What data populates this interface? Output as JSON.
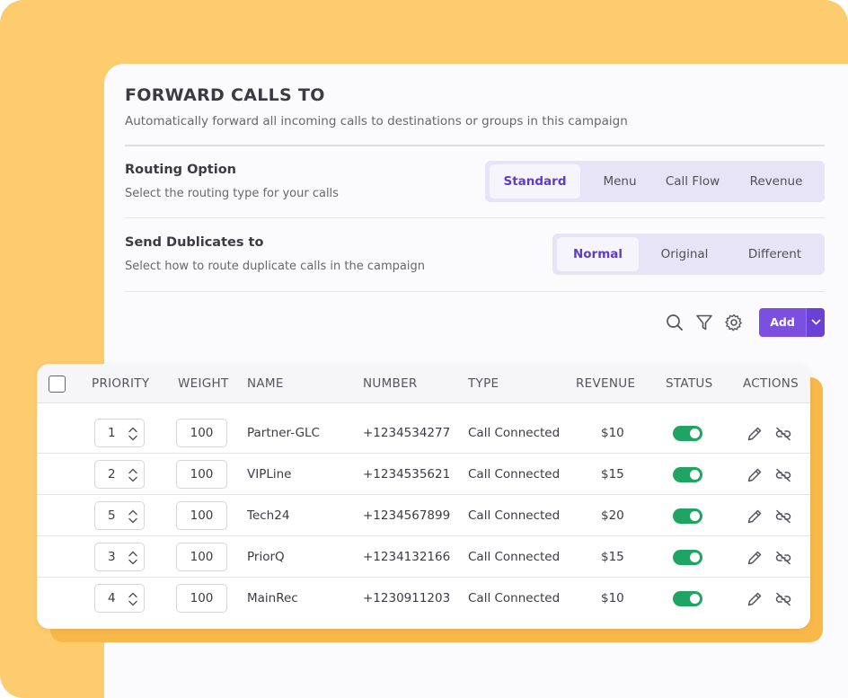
{
  "header": {
    "title": "FORWARD CALLS TO",
    "subtitle": "Automatically forward all incoming calls to destinations or groups in this campaign"
  },
  "routing": {
    "title": "Routing Option",
    "description": "Select the routing type for your calls",
    "options": [
      "Standard",
      "Menu",
      "Call Flow",
      "Revenue"
    ],
    "selected": "Standard"
  },
  "duplicates": {
    "title": "Send Dublicates to",
    "description": "Select how to route duplicate calls in the campaign",
    "options": [
      "Normal",
      "Original",
      "Different"
    ],
    "selected": "Normal"
  },
  "toolbar": {
    "search_icon": "search-icon",
    "filter_icon": "filter-icon",
    "settings_icon": "gear-icon",
    "add_label": "Add",
    "accent": "#7b4fe0"
  },
  "table": {
    "columns": [
      "PRIORITY",
      "WEIGHT",
      "NAME",
      "NUMBER",
      "TYPE",
      "REVENUE",
      "STATUS",
      "ACTIONS"
    ],
    "rows": [
      {
        "priority": "1",
        "weight": "100",
        "name": "Partner-GLC",
        "number": "+1234534277",
        "type": "Call Connected",
        "revenue": "$10",
        "status": "on"
      },
      {
        "priority": "2",
        "weight": "100",
        "name": "VIPLine",
        "number": "+1234535621",
        "type": "Call Connected",
        "revenue": "$15",
        "status": "on"
      },
      {
        "priority": "5",
        "weight": "100",
        "name": "Tech24",
        "number": "+1234567899",
        "type": "Call Connected",
        "revenue": "$20",
        "status": "on"
      },
      {
        "priority": "3",
        "weight": "100",
        "name": "PriorQ",
        "number": "+1234132166",
        "type": "Call Connected",
        "revenue": "$15",
        "status": "on"
      },
      {
        "priority": "4",
        "weight": "100",
        "name": "MainRec",
        "number": "+1230911203",
        "type": "Call Connected",
        "revenue": "$10",
        "status": "on"
      }
    ]
  },
  "colors": {
    "background_yellow": "#fdcc6e",
    "status_on": "#1fa463",
    "active_tab": "#5f3dc4"
  }
}
